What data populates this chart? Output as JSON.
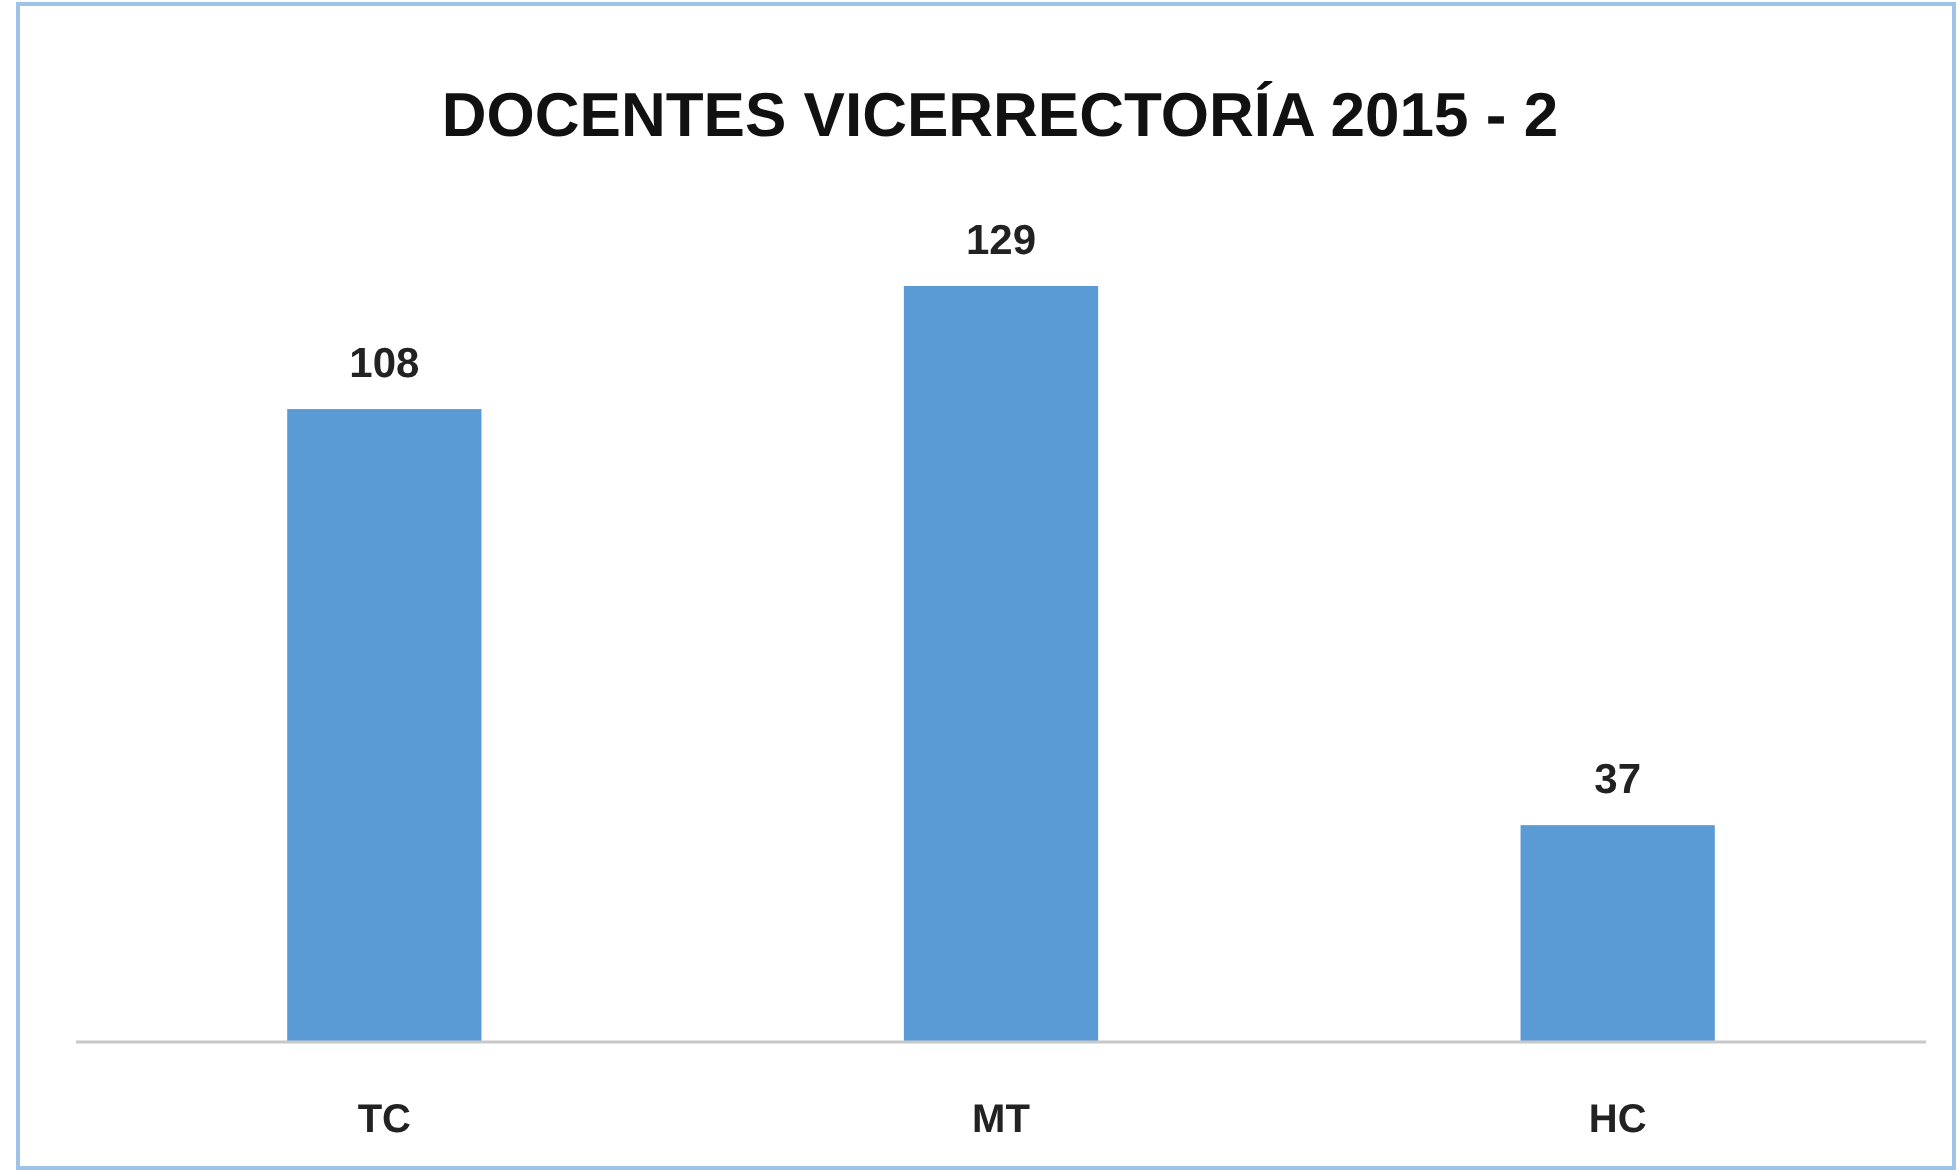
{
  "chart_data": {
    "type": "bar",
    "title": "DOCENTES VICERRECTORÍA 2015 - 2",
    "categories": [
      "TC",
      "MT",
      "HC"
    ],
    "values": [
      108,
      129,
      37
    ],
    "color": "#5b9bd5",
    "data_labels": true
  }
}
